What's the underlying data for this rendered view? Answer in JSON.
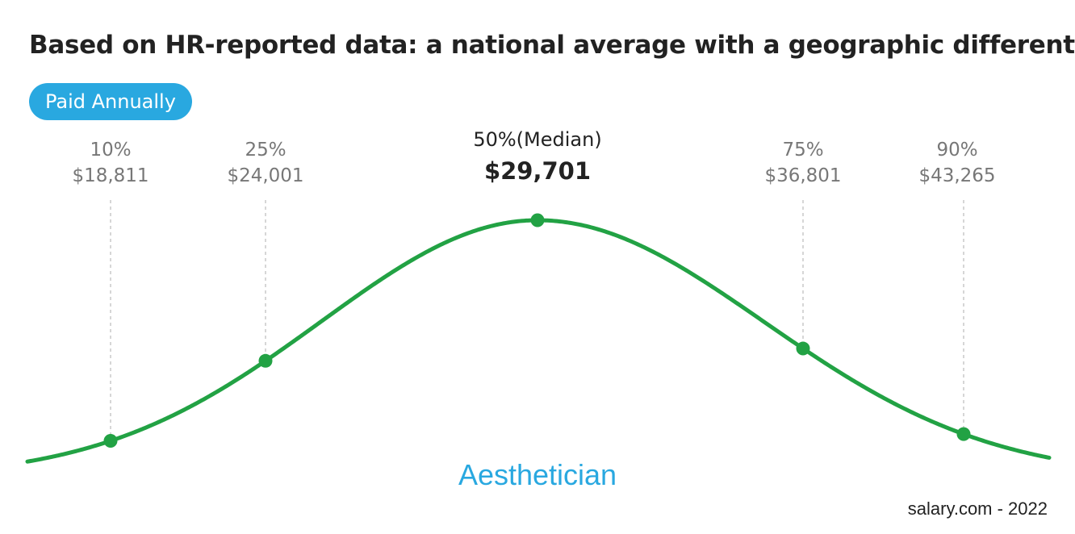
{
  "title": "Based on HR-reported data: a national average with a geographic differential",
  "pay_period_badge": "Paid Annually",
  "job_title": "Aesthetician",
  "source": "salary.com - 2022",
  "colors": {
    "curve": "#22a244",
    "accent": "#29a8e0",
    "guide": "#bbbbbb"
  },
  "chart_data": {
    "type": "line",
    "title": "Based on HR-reported data: a national average with a geographic differential",
    "series": [
      {
        "name": "Aesthetician",
        "values": [
          18811,
          24001,
          29701,
          36801,
          43265
        ]
      }
    ],
    "categories": [
      "10%",
      "25%",
      "50%(Median)",
      "75%",
      "90%"
    ],
    "percentiles": [
      {
        "label": "10%",
        "value": 18811,
        "display": "$18,811"
      },
      {
        "label": "25%",
        "value": 24001,
        "display": "$24,001"
      },
      {
        "label": "50%(Median)",
        "value": 29701,
        "display": "$29,701"
      },
      {
        "label": "75%",
        "value": 36801,
        "display": "$36,801"
      },
      {
        "label": "90%",
        "value": 43265,
        "display": "$43,265"
      }
    ],
    "grid": false,
    "legend": "none"
  }
}
